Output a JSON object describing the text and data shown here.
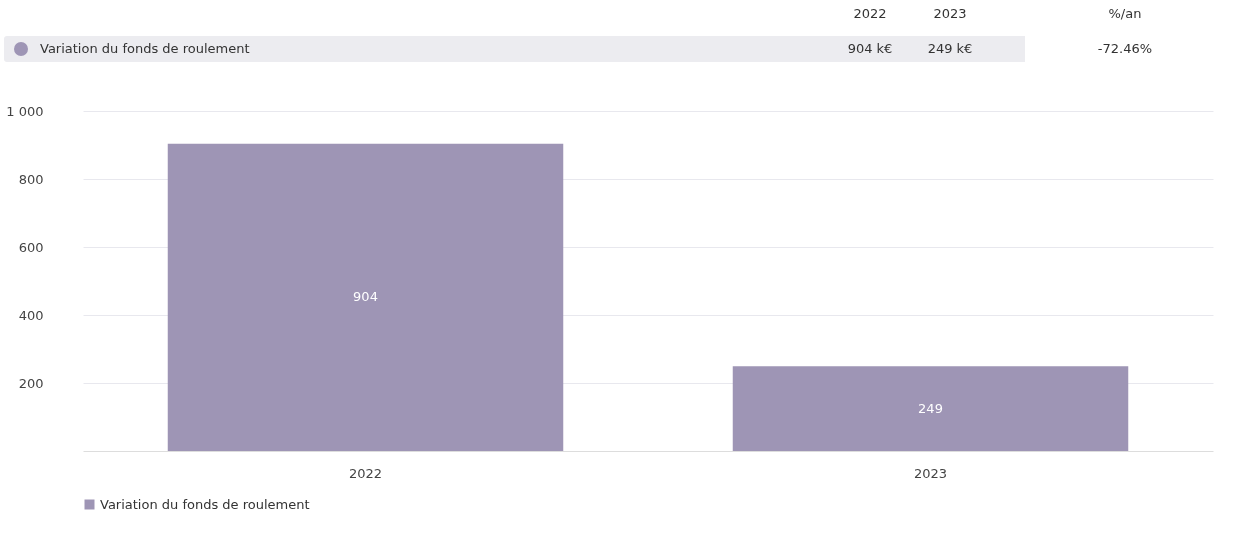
{
  "chart_data": {
    "type": "bar",
    "categories": [
      "2022",
      "2023"
    ],
    "series": [
      {
        "name": "Variation du fonds de roulement",
        "color": "#9e95b5",
        "values": [
          904,
          249
        ]
      }
    ],
    "ylim": [
      0,
      1000
    ],
    "yticks": [
      200,
      400,
      600,
      800,
      {
        "value": 1000,
        "label": "1 000"
      }
    ],
    "grid": "y",
    "legend": "bottom",
    "data_labels": true,
    "annotations": [
      "2022",
      "2023",
      "%/an",
      "904 k€",
      "249 k€",
      "-72.46%"
    ]
  }
}
